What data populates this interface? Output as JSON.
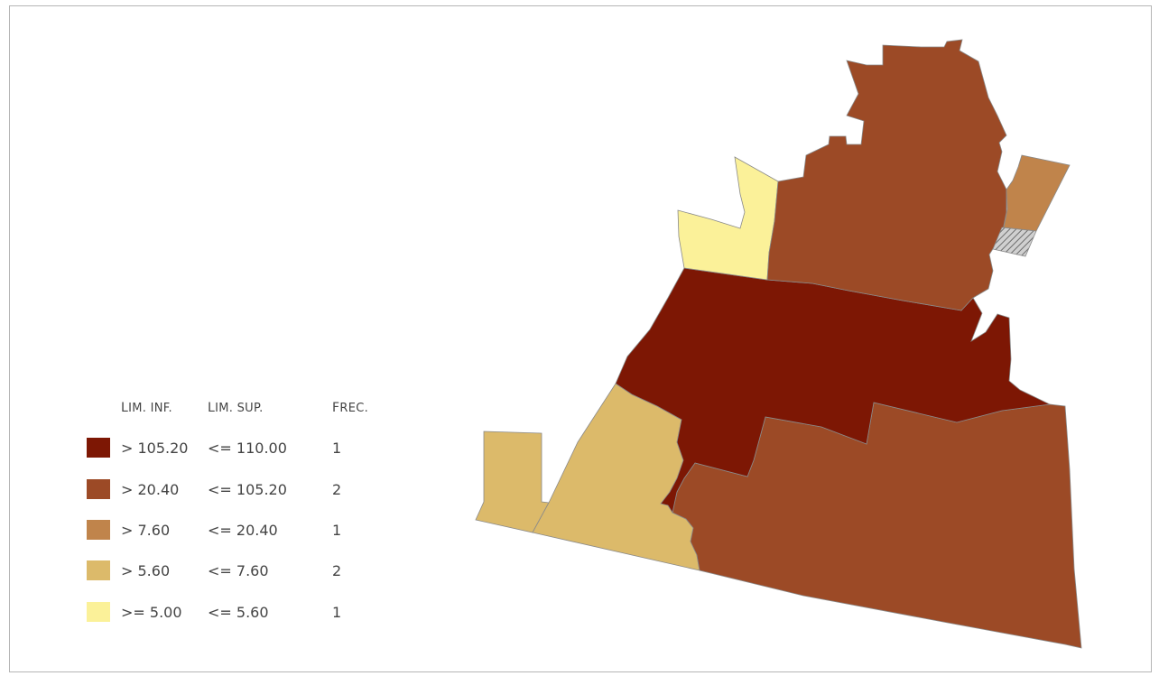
{
  "legend": {
    "headers": {
      "lim_inf": [
        "L",
        "IM. INF."
      ],
      "lim_sup": [
        "L",
        "IM. SUP."
      ],
      "frec": [
        "F",
        "REC."
      ]
    },
    "classes": [
      {
        "lim_inf": "> 105.20",
        "lim_sup": "<= 110.00",
        "frec": "1",
        "color": "#7d1704"
      },
      {
        "lim_inf": "> 20.40",
        "lim_sup": "<= 105.20",
        "frec": "2",
        "color": "#9c4a26"
      },
      {
        "lim_inf": "> 7.60",
        "lim_sup": "<= 20.40",
        "frec": "1",
        "color": "#c0844b"
      },
      {
        "lim_inf": "> 5.60",
        "lim_sup": "<= 7.60",
        "frec": "2",
        "color": "#dcba6a"
      },
      {
        "lim_inf": ">= 5.00",
        "lim_sup": "<= 5.60",
        "frec": "1",
        "color": "#fbf199"
      }
    ]
  },
  "map": {
    "regions": [
      {
        "name": "north-region",
        "class_index": 1
      },
      {
        "name": "northwest-small-region",
        "class_index": 4
      },
      {
        "name": "northeast-small-region",
        "class_index": 2
      },
      {
        "name": "northeast-nodata-region",
        "class_index": null
      },
      {
        "name": "central-region",
        "class_index": 0
      },
      {
        "name": "southeast-region",
        "class_index": 1
      },
      {
        "name": "southwest-center-region",
        "class_index": 3
      },
      {
        "name": "southwest-small-region",
        "class_index": 3
      }
    ],
    "nodata_color": "#a9a9a9"
  }
}
